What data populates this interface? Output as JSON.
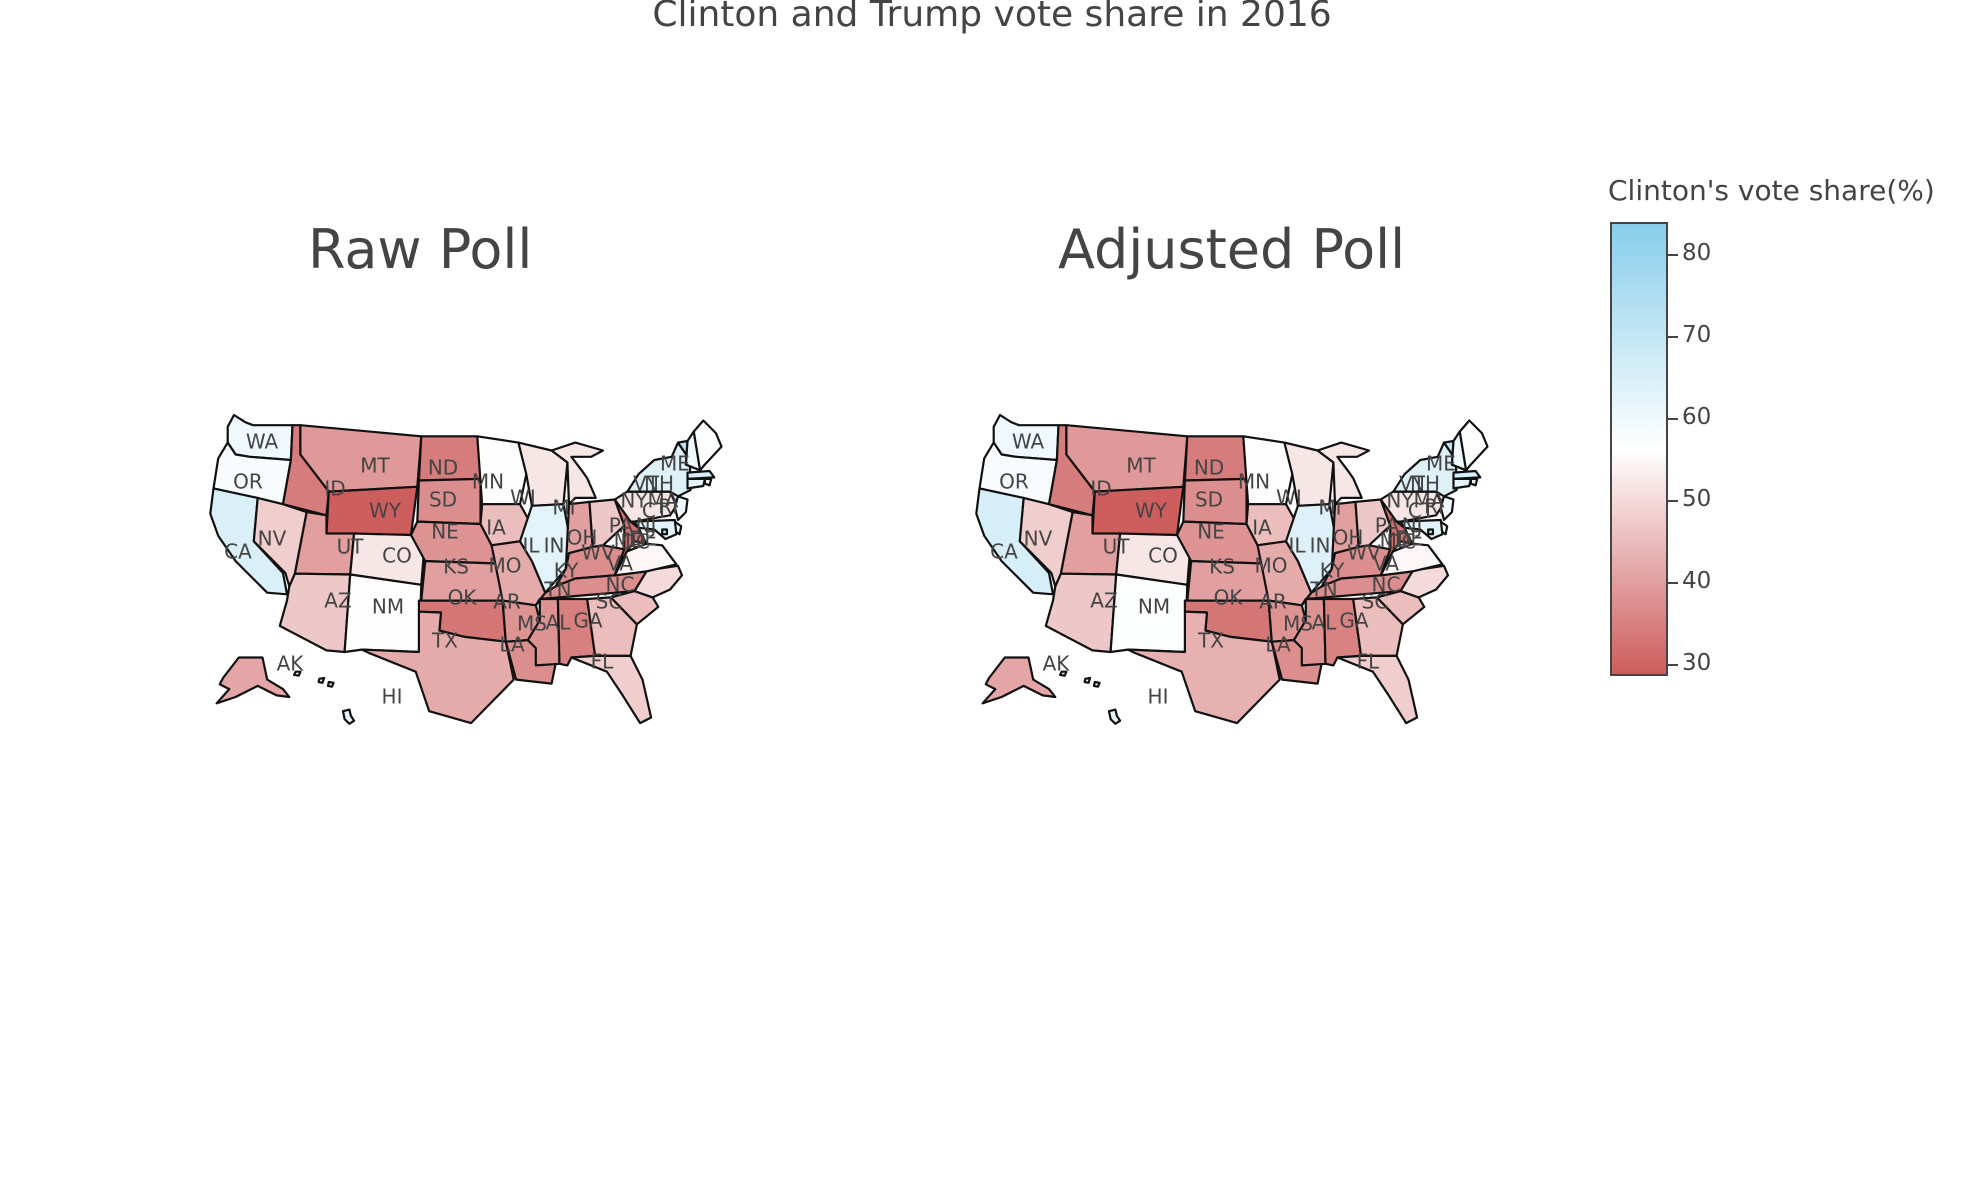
{
  "title": "Clinton and Trump vote share in 2016",
  "panels": [
    {
      "title": "Raw Poll",
      "data": {
        "AK": 41,
        "AL": 34.5,
        "AR": 38,
        "AZ": 47,
        "CA": 65,
        "CO": 52,
        "CT": 62,
        "DC": 70,
        "DE": 60,
        "FL": 48,
        "GA": 45,
        "HI": 63,
        "IA": 45,
        "ID": 34,
        "IL": 63,
        "IN": 40,
        "KS": 40,
        "KY": 37,
        "LA": 37,
        "MA": 66,
        "MD": 63,
        "ME": 57,
        "MI": 52,
        "MN": 56,
        "MO": 42,
        "MS": 38,
        "MT": 39,
        "NC": 50,
        "ND": 34,
        "NE": 38,
        "NH": 60,
        "NJ": 60,
        "NM": 56,
        "NV": 48,
        "NY": 64,
        "OH": 47,
        "OK": 33,
        "OR": 58,
        "PA": 52,
        "RI": 62,
        "SC": 45,
        "SD": 37,
        "TN": 37,
        "TX": 42,
        "UT": 40,
        "VA": 55,
        "VT": 72,
        "WA": 60,
        "WI": 52,
        "WV": 32,
        "WY": 29
      }
    },
    {
      "title": "Adjusted Poll",
      "data": {
        "AK": 41,
        "AL": 35,
        "AR": 38,
        "AZ": 47,
        "CA": 66,
        "CO": 52,
        "CT": 62,
        "DC": 70,
        "DE": 60,
        "FL": 48,
        "GA": 45,
        "HI": 63,
        "IA": 45,
        "ID": 34,
        "IL": 64,
        "IN": 40,
        "KS": 40,
        "KY": 37,
        "LA": 37,
        "MA": 66,
        "MD": 63,
        "ME": 57,
        "MI": 52,
        "MN": 56,
        "MO": 42,
        "MS": 38,
        "MT": 39,
        "NC": 50,
        "ND": 34,
        "NE": 38,
        "NH": 60,
        "NJ": 60,
        "NM": 57,
        "NV": 48,
        "NY": 64,
        "OH": 47,
        "OK": 33,
        "OR": 58,
        "PA": 52,
        "RI": 62,
        "SC": 45,
        "SD": 37,
        "TN": 37,
        "TX": 43,
        "UT": 40,
        "VA": 55,
        "VT": 72,
        "WA": 60,
        "WI": 52,
        "WV": 32,
        "WY": 29
      }
    }
  ],
  "colorbar": {
    "title": "Clinton's vote share(%)",
    "min": 28.6,
    "max": 84,
    "ticks": [
      30,
      40,
      50,
      60,
      70,
      80
    ],
    "stops": [
      {
        "value": 28.6,
        "color": "#cd5c5c"
      },
      {
        "value": 56.3,
        "color": "#ffffff"
      },
      {
        "value": 84,
        "color": "#87ceeb"
      }
    ]
  }
}
